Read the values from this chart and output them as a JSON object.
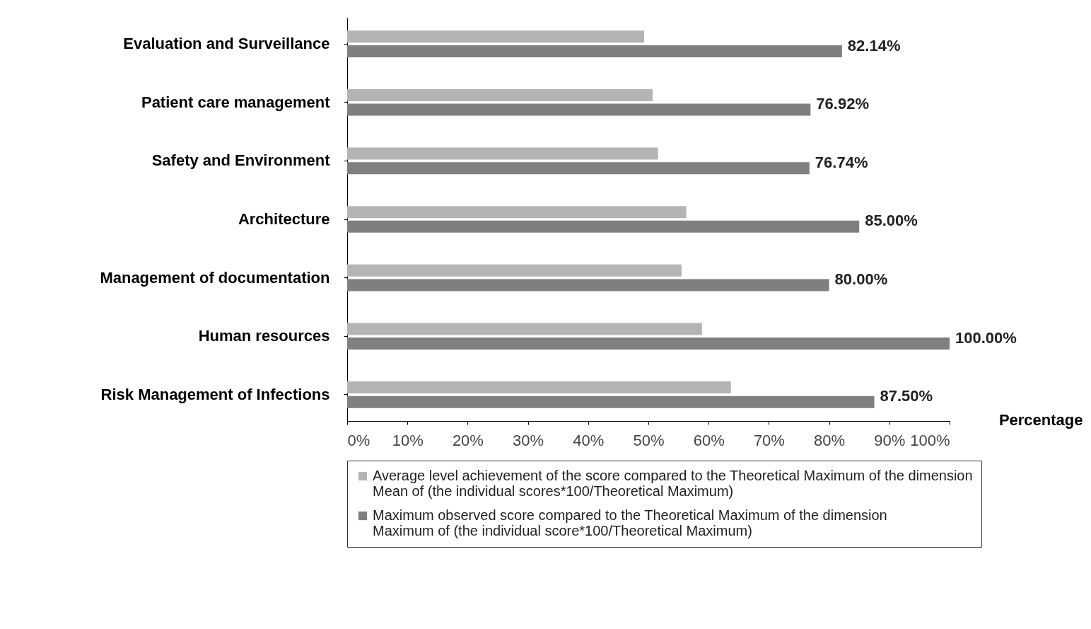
{
  "chart_data": {
    "type": "bar",
    "orientation": "horizontal",
    "xlabel": "Percentage",
    "categories": [
      "Evaluation and Surveillance",
      "Patient care management",
      "Safety and Environment",
      "Architecture",
      "Management of documentation",
      "Human resources",
      "Risk Management of Infections"
    ],
    "series": [
      {
        "name": "Average level achievement of the score compared to the Theoretical Maximum of the dimension\nMean of (the individual scores*100/Theoretical Maximum)",
        "color": "#b4b4b4",
        "values": [
          49.3,
          50.7,
          51.6,
          56.3,
          55.5,
          58.9,
          63.7
        ]
      },
      {
        "name": "Maximum observed score compared to the Theoretical Maximum of the dimension\nMaximum of (the individual score*100/Theoretical Maximum)",
        "color": "#7f7f7f",
        "values": [
          82.14,
          76.92,
          76.74,
          85.0,
          80.0,
          100.0,
          87.5
        ],
        "value_labels": [
          "82.14%",
          "76.92%",
          "76.74%",
          "85.00%",
          "80.00%",
          "100.00%",
          "87.50%"
        ]
      }
    ],
    "xlim": [
      0,
      100
    ],
    "xticks": [
      {
        "value": 0,
        "label": "0%"
      },
      {
        "value": 10,
        "label": "10%"
      },
      {
        "value": 20,
        "label": "20%"
      },
      {
        "value": 30,
        "label": "30%"
      },
      {
        "value": 40,
        "label": "40%"
      },
      {
        "value": 50,
        "label": "50%"
      },
      {
        "value": 60,
        "label": "60%"
      },
      {
        "value": 70,
        "label": "70%"
      },
      {
        "value": 80,
        "label": "80%"
      },
      {
        "value": 90,
        "label": "90%"
      },
      {
        "value": 100,
        "label": "100%"
      }
    ],
    "grid": false,
    "legend": "bottom"
  }
}
